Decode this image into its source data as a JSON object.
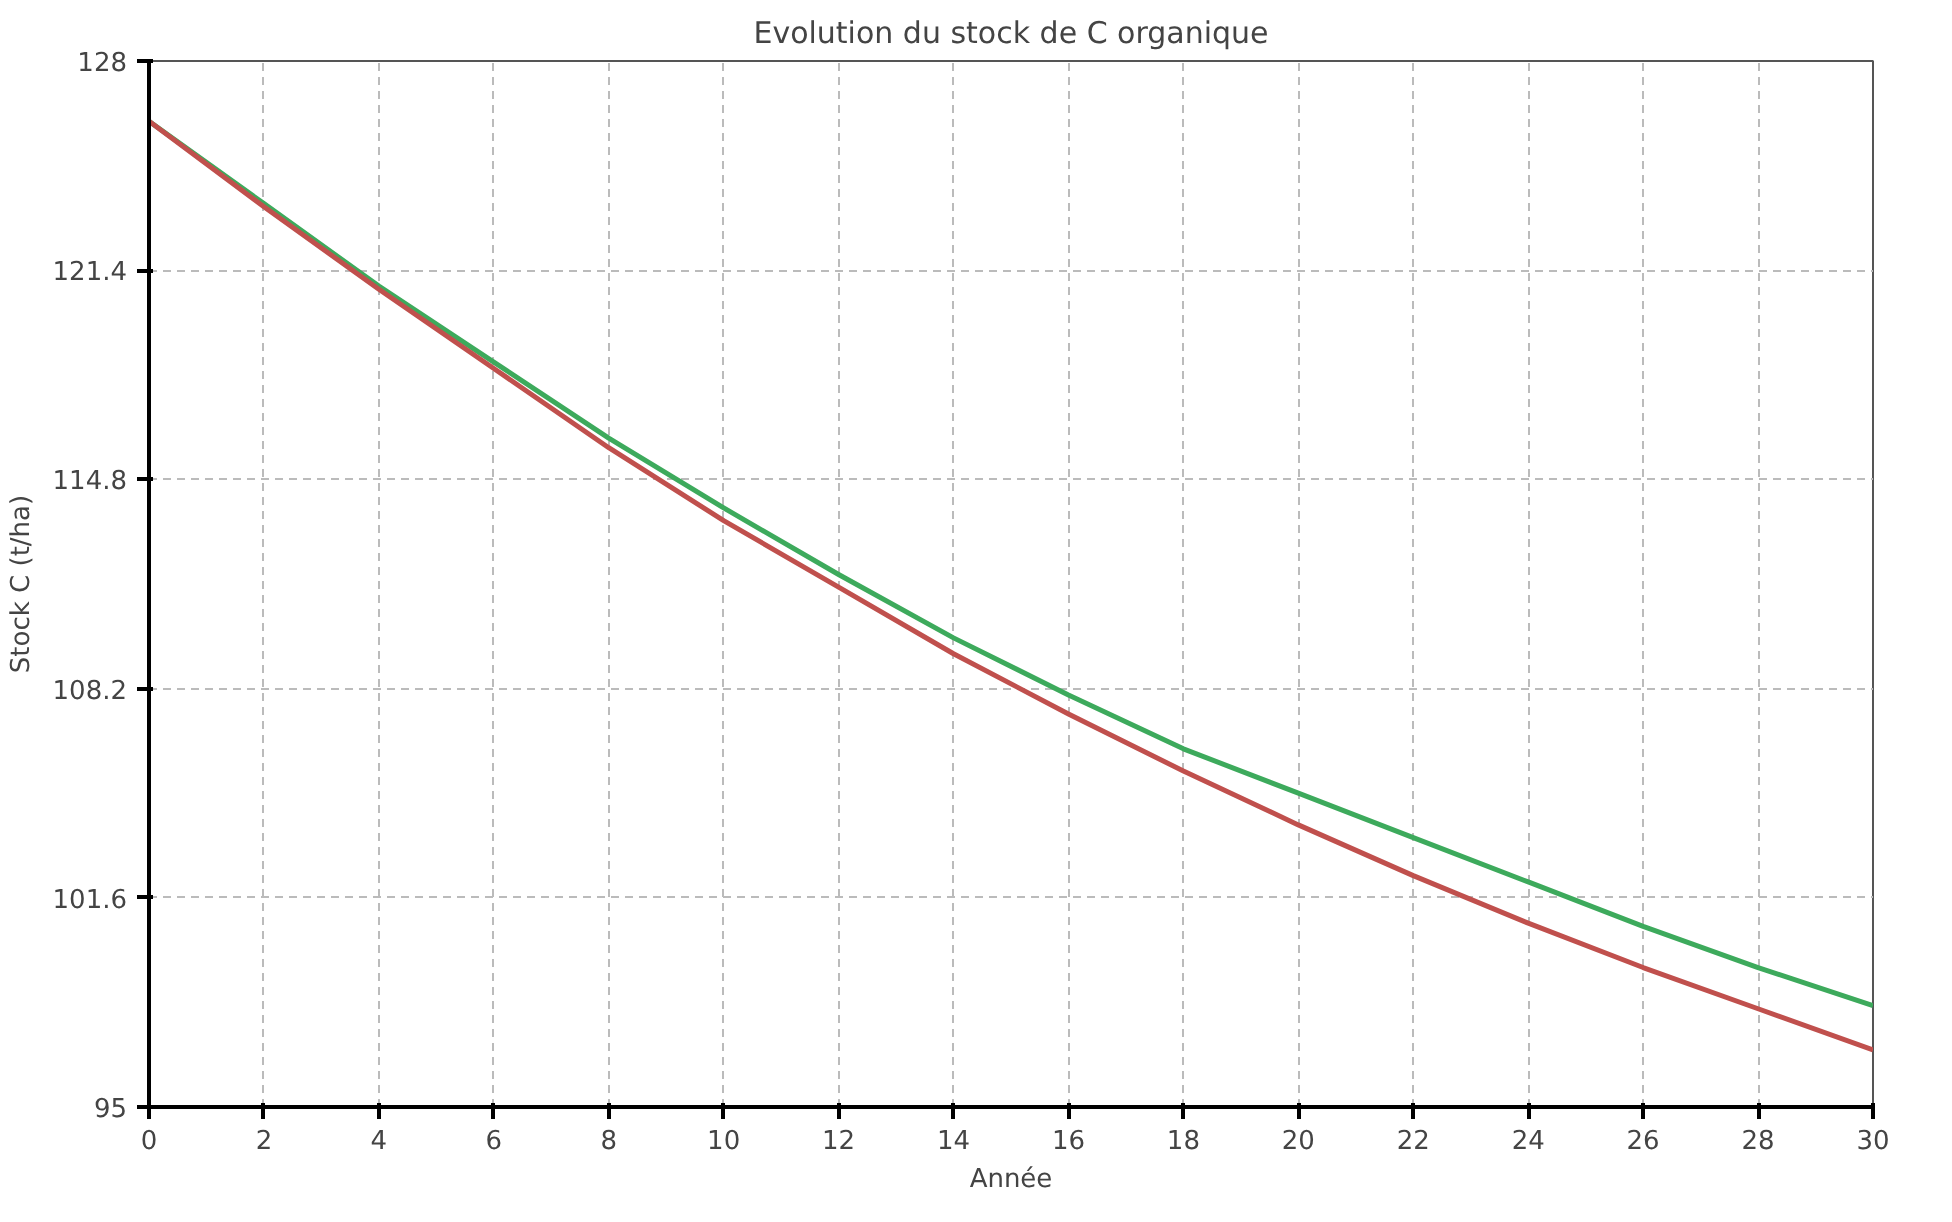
{
  "chart_data": {
    "type": "line",
    "title": "Evolution du stock de C organique",
    "xlabel": "Année",
    "ylabel": "Stock C (t/ha)",
    "x": [
      0,
      2,
      4,
      6,
      8,
      10,
      12,
      14,
      16,
      18,
      20,
      22,
      24,
      26,
      28,
      30
    ],
    "series": [
      {
        "color": "#3daa5c",
        "values": [
          126.1,
          123.5,
          120.9,
          118.5,
          116.1,
          113.9,
          111.8,
          109.8,
          108.0,
          106.3,
          104.9,
          103.5,
          102.1,
          100.7,
          99.4,
          98.2
        ]
      },
      {
        "color": "#c0504d",
        "values": [
          126.1,
          123.4,
          120.8,
          118.3,
          115.8,
          113.5,
          111.4,
          109.3,
          107.4,
          105.6,
          103.9,
          102.3,
          100.8,
          99.4,
          98.1,
          96.8
        ]
      }
    ],
    "xlim": [
      0,
      30
    ],
    "ylim": [
      95,
      128
    ],
    "xticks": [
      0,
      2,
      4,
      6,
      8,
      10,
      12,
      14,
      16,
      18,
      20,
      22,
      24,
      26,
      28,
      30
    ],
    "yticks": [
      95,
      101.6,
      108.2,
      114.8,
      121.4,
      128
    ],
    "grid": true,
    "marker": "none",
    "line_style": "solid"
  }
}
